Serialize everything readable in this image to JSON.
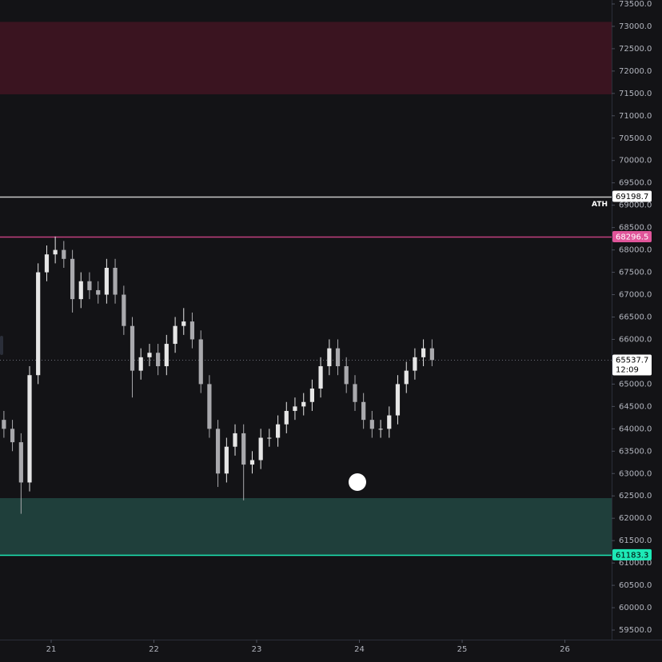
{
  "chart_data": {
    "type": "candlestick",
    "x": [
      20.54,
      20.623,
      20.707,
      20.79,
      20.873,
      20.957,
      21.04,
      21.123,
      21.207,
      21.29,
      21.373,
      21.457,
      21.54,
      21.623,
      21.707,
      21.79,
      21.873,
      21.957,
      22.04,
      22.123,
      22.207,
      22.29,
      22.373,
      22.457,
      22.54,
      22.623,
      22.707,
      22.79,
      22.873,
      22.957,
      23.04,
      23.123,
      23.207,
      23.29,
      23.373,
      23.457,
      23.54,
      23.623,
      23.707,
      23.79,
      23.873,
      23.957,
      24.04,
      24.123,
      24.207,
      24.29,
      24.373,
      24.457,
      24.54,
      24.623,
      24.707
    ],
    "open": [
      64200,
      64000,
      63700,
      62800,
      65200,
      67500,
      67900,
      68000,
      67800,
      66900,
      67300,
      67100,
      67000,
      67600,
      67000,
      66300,
      65300,
      65600,
      65700,
      65400,
      65900,
      66300,
      66400,
      66000,
      65000,
      64000,
      63000,
      63600,
      63900,
      63200,
      63300,
      63800,
      63800,
      64100,
      64400,
      64500,
      64600,
      64900,
      65400,
      65800,
      65400,
      65000,
      64600,
      64200,
      64000,
      64000,
      64300,
      65000,
      65300,
      65600,
      65800
    ],
    "high": [
      64400,
      64200,
      63900,
      65400,
      67700,
      68100,
      68300,
      68200,
      68000,
      67500,
      67500,
      67300,
      67800,
      67800,
      67200,
      66500,
      65800,
      65900,
      65900,
      66100,
      66500,
      66700,
      66600,
      66200,
      65200,
      64200,
      63800,
      64100,
      64100,
      63500,
      64000,
      64000,
      64300,
      64600,
      64700,
      64800,
      65100,
      65600,
      66000,
      66000,
      65600,
      65200,
      64800,
      64400,
      64200,
      64500,
      65200,
      65500,
      65800,
      66000,
      66000
    ],
    "low": [
      63800,
      63500,
      62100,
      62600,
      65000,
      67300,
      67700,
      67600,
      66600,
      66700,
      66900,
      66800,
      66800,
      66800,
      66100,
      64700,
      65100,
      65400,
      65200,
      65200,
      65700,
      66100,
      65800,
      64800,
      63800,
      62700,
      62800,
      63400,
      62400,
      63000,
      63100,
      63600,
      63600,
      63900,
      64200,
      64300,
      64400,
      64700,
      65200,
      65200,
      64800,
      64400,
      64000,
      63800,
      63800,
      63800,
      64100,
      64800,
      65100,
      65400,
      65400
    ],
    "close": [
      64000,
      63700,
      62800,
      65200,
      67500,
      67900,
      68000,
      67800,
      66900,
      67300,
      67100,
      67000,
      67600,
      67000,
      66300,
      65300,
      65600,
      65700,
      65400,
      65900,
      66300,
      66400,
      66000,
      65000,
      64000,
      63000,
      63600,
      63900,
      63200,
      63300,
      63800,
      63800,
      64100,
      64400,
      64500,
      64600,
      64900,
      65400,
      65800,
      65400,
      65000,
      64600,
      64200,
      64000,
      64000,
      64300,
      65000,
      65300,
      65600,
      65800,
      65537.7
    ],
    "up_color": "#e6e6e6",
    "down_color": "#a9a9ad",
    "countdown": "12:09",
    "xlim": [
      20.502,
      26.455
    ],
    "xticks": [
      21,
      22,
      23,
      24,
      25,
      26
    ],
    "ylim": [
      59286,
      73589
    ],
    "yticks": [
      {
        "value": 59500,
        "label": "59500.0"
      },
      {
        "value": 60000,
        "label": "60000.0"
      },
      {
        "value": 60500,
        "label": "60500.0"
      },
      {
        "value": 61000,
        "label": "61000.0"
      },
      {
        "value": 61500,
        "label": "61500.0"
      },
      {
        "value": 62000,
        "label": "62000.0"
      },
      {
        "value": 62500,
        "label": "62500.0"
      },
      {
        "value": 63000,
        "label": "63000.0"
      },
      {
        "value": 63500,
        "label": "63500.0"
      },
      {
        "value": 64000,
        "label": "64000.0"
      },
      {
        "value": 64500,
        "label": "64500.0"
      },
      {
        "value": 65000,
        "label": "65000.0"
      },
      {
        "value": 65500,
        "label": "65500.0"
      },
      {
        "value": 66000,
        "label": "66000.0"
      },
      {
        "value": 66500,
        "label": "66500.0"
      },
      {
        "value": 67000,
        "label": "67000.0"
      },
      {
        "value": 67500,
        "label": "67500.0"
      },
      {
        "value": 68000,
        "label": "68000.0"
      },
      {
        "value": 68500,
        "label": "68500.0"
      },
      {
        "value": 69000,
        "label": "69000.0"
      },
      {
        "value": 69500,
        "label": "69500.0"
      },
      {
        "value": 70000,
        "label": "70000.0"
      },
      {
        "value": 70500,
        "label": "70500.0"
      },
      {
        "value": 71000,
        "label": "71000.0"
      },
      {
        "value": 71500,
        "label": "71500.0"
      },
      {
        "value": 72000,
        "label": "72000.0"
      },
      {
        "value": 72500,
        "label": "72500.0"
      },
      {
        "value": 73000,
        "label": "73000.0"
      },
      {
        "value": 73500,
        "label": "73500.0"
      }
    ],
    "zones": [
      {
        "from": 71480,
        "to": 73100,
        "color": "#3a1420"
      },
      {
        "from": 61183.3,
        "to": 62450,
        "color": "#1f3f3b"
      }
    ],
    "levels": [
      {
        "name": "ATH",
        "value": 69198.7,
        "color": "#c8c8c8",
        "label_color": "#ffffff",
        "text_color": "#000000"
      },
      {
        "value": 68296.5,
        "color": "#c2407f",
        "label_color": "#e0559a",
        "text_color": "#ffffff"
      },
      {
        "value": 61183.3,
        "color": "#1de9b6",
        "label_color": "#1de9b6",
        "text_color": "#000000"
      }
    ]
  }
}
